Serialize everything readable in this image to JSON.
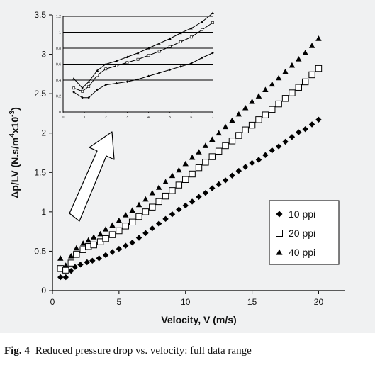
{
  "caption": {
    "label": "Fig. 4",
    "text": "Reduced pressure drop vs. velocity: full data range"
  },
  "chart_data": [
    {
      "type": "scatter",
      "title": "",
      "xlabel": "Velocity, V (m/s)",
      "ylabel_parts": {
        "main": "Δp/LV (N.s/m",
        "sup1": "4",
        "mid": "x10",
        "sup2": "-3",
        "end": ")"
      },
      "xlim": [
        0,
        22
      ],
      "ylim": [
        0,
        3.5
      ],
      "xticks": [
        0,
        5,
        10,
        15,
        20
      ],
      "xtick_labels": [
        "0",
        "5",
        "10",
        "15",
        "20"
      ],
      "yticks": [
        0,
        0.5,
        1,
        1.5,
        2,
        2.5,
        3,
        3.5
      ],
      "ytick_labels": [
        "0",
        "0.5",
        "1",
        "1.5",
        "2",
        "2.5",
        "3",
        "3.5"
      ],
      "grid": false,
      "legend_position": "bottom-right",
      "series": [
        {
          "name": "10 ppi",
          "marker": "diamond",
          "color": "#000000",
          "points": [
            [
              0.6,
              0.17
            ],
            [
              1.0,
              0.17
            ],
            [
              1.4,
              0.25
            ],
            [
              1.7,
              0.3
            ],
            [
              2.1,
              0.33
            ],
            [
              2.6,
              0.36
            ],
            [
              3.0,
              0.38
            ],
            [
              3.5,
              0.41
            ],
            [
              4.0,
              0.45
            ],
            [
              4.5,
              0.49
            ],
            [
              5.0,
              0.53
            ],
            [
              5.5,
              0.57
            ],
            [
              6.0,
              0.61
            ],
            [
              6.5,
              0.67
            ],
            [
              7.0,
              0.73
            ],
            [
              7.5,
              0.79
            ],
            [
              8.0,
              0.85
            ],
            [
              8.5,
              0.91
            ],
            [
              9.0,
              0.97
            ],
            [
              9.5,
              1.03
            ],
            [
              10.0,
              1.08
            ],
            [
              10.5,
              1.13
            ],
            [
              11.0,
              1.19
            ],
            [
              11.5,
              1.24
            ],
            [
              12.0,
              1.3
            ],
            [
              12.5,
              1.35
            ],
            [
              13.0,
              1.4
            ],
            [
              13.5,
              1.46
            ],
            [
              14.0,
              1.52
            ],
            [
              14.5,
              1.57
            ],
            [
              15.0,
              1.62
            ],
            [
              15.5,
              1.66
            ],
            [
              16.0,
              1.72
            ],
            [
              16.5,
              1.78
            ],
            [
              17.0,
              1.83
            ],
            [
              17.5,
              1.89
            ],
            [
              18.0,
              1.95
            ],
            [
              18.5,
              2.01
            ],
            [
              19.0,
              2.05
            ],
            [
              19.5,
              2.11
            ],
            [
              20.0,
              2.17
            ]
          ]
        },
        {
          "name": "20 ppi",
          "marker": "square-open",
          "color": "#000000",
          "points": [
            [
              0.6,
              0.28
            ],
            [
              1.0,
              0.26
            ],
            [
              1.4,
              0.35
            ],
            [
              1.8,
              0.46
            ],
            [
              2.3,
              0.52
            ],
            [
              2.7,
              0.56
            ],
            [
              3.1,
              0.58
            ],
            [
              3.6,
              0.62
            ],
            [
              4.0,
              0.66
            ],
            [
              4.5,
              0.71
            ],
            [
              5.0,
              0.76
            ],
            [
              5.5,
              0.82
            ],
            [
              6.0,
              0.87
            ],
            [
              6.5,
              0.94
            ],
            [
              7.0,
              1.0
            ],
            [
              7.5,
              1.06
            ],
            [
              8.0,
              1.13
            ],
            [
              8.5,
              1.2
            ],
            [
              9.0,
              1.27
            ],
            [
              9.5,
              1.34
            ],
            [
              10.0,
              1.41
            ],
            [
              10.5,
              1.48
            ],
            [
              11.0,
              1.56
            ],
            [
              11.5,
              1.63
            ],
            [
              12.0,
              1.7
            ],
            [
              12.5,
              1.77
            ],
            [
              13.0,
              1.84
            ],
            [
              13.5,
              1.9
            ],
            [
              14.0,
              1.97
            ],
            [
              14.5,
              2.04
            ],
            [
              15.0,
              2.1
            ],
            [
              15.5,
              2.17
            ],
            [
              16.0,
              2.23
            ],
            [
              16.5,
              2.3
            ],
            [
              17.0,
              2.37
            ],
            [
              17.5,
              2.44
            ],
            [
              18.0,
              2.51
            ],
            [
              18.5,
              2.58
            ],
            [
              19.0,
              2.65
            ],
            [
              19.5,
              2.74
            ],
            [
              20.0,
              2.82
            ]
          ]
        },
        {
          "name": "40 ppi",
          "marker": "triangle",
          "color": "#000000",
          "points": [
            [
              0.6,
              0.41
            ],
            [
              1.0,
              0.32
            ],
            [
              1.4,
              0.44
            ],
            [
              1.8,
              0.54
            ],
            [
              2.3,
              0.6
            ],
            [
              2.7,
              0.64
            ],
            [
              3.1,
              0.68
            ],
            [
              3.6,
              0.72
            ],
            [
              4.0,
              0.78
            ],
            [
              4.5,
              0.83
            ],
            [
              5.0,
              0.89
            ],
            [
              5.5,
              0.96
            ],
            [
              6.0,
              1.02
            ],
            [
              6.5,
              1.09
            ],
            [
              7.0,
              1.16
            ],
            [
              7.5,
              1.24
            ],
            [
              8.0,
              1.31
            ],
            [
              8.5,
              1.38
            ],
            [
              9.0,
              1.46
            ],
            [
              9.5,
              1.53
            ],
            [
              10.0,
              1.61
            ],
            [
              10.5,
              1.69
            ],
            [
              11.0,
              1.76
            ],
            [
              11.5,
              1.84
            ],
            [
              12.0,
              1.92
            ],
            [
              12.5,
              2.0
            ],
            [
              13.0,
              2.08
            ],
            [
              13.5,
              2.16
            ],
            [
              14.0,
              2.24
            ],
            [
              14.5,
              2.32
            ],
            [
              15.0,
              2.4
            ],
            [
              15.5,
              2.47
            ],
            [
              16.0,
              2.55
            ],
            [
              16.5,
              2.62
            ],
            [
              17.0,
              2.7
            ],
            [
              17.5,
              2.78
            ],
            [
              18.0,
              2.86
            ],
            [
              18.5,
              2.94
            ],
            [
              19.0,
              3.02
            ],
            [
              19.5,
              3.11
            ],
            [
              20.0,
              3.2
            ]
          ]
        }
      ]
    },
    {
      "type": "line",
      "title": "",
      "role": "inset",
      "xlim": [
        0,
        7
      ],
      "ylim": [
        0,
        1.2
      ],
      "xticks": [
        0,
        1,
        2,
        3,
        4,
        5,
        6,
        7
      ],
      "xtick_labels": [
        "0",
        "1",
        "2",
        "3",
        "4",
        "5",
        "6",
        "7"
      ],
      "yticks": [
        0,
        0.2,
        0.4,
        0.6,
        0.8,
        1,
        1.2
      ],
      "ytick_labels": [
        "0",
        "0.2",
        "0.4",
        "0.6",
        "0.8",
        "1",
        "1.2"
      ],
      "grid": true,
      "series": [
        {
          "name": "",
          "marker": "diamond-small",
          "x": [
            0.5,
            0.9,
            1.2,
            1.6,
            2.0,
            2.5,
            3.0,
            3.5,
            4.0,
            4.5,
            5.0,
            5.5,
            6.0,
            6.5,
            7.0
          ],
          "y": [
            0.25,
            0.18,
            0.18,
            0.28,
            0.34,
            0.36,
            0.38,
            0.41,
            0.45,
            0.49,
            0.53,
            0.57,
            0.61,
            0.68,
            0.74
          ]
        },
        {
          "name": "",
          "marker": "square-small",
          "x": [
            0.5,
            0.9,
            1.2,
            1.6,
            2.0,
            2.5,
            3.0,
            3.5,
            4.0,
            4.5,
            5.0,
            5.5,
            6.0,
            6.5,
            7.0
          ],
          "y": [
            0.3,
            0.26,
            0.32,
            0.46,
            0.54,
            0.58,
            0.62,
            0.66,
            0.71,
            0.76,
            0.82,
            0.88,
            0.94,
            1.03,
            1.12
          ]
        },
        {
          "name": "",
          "marker": "triangle-small",
          "x": [
            0.5,
            0.9,
            1.2,
            1.6,
            2.0,
            2.5,
            3.0,
            3.5,
            4.0,
            4.5,
            5.0,
            5.5,
            6.0,
            6.5,
            7.0
          ],
          "y": [
            0.42,
            0.3,
            0.38,
            0.52,
            0.6,
            0.64,
            0.69,
            0.74,
            0.8,
            0.86,
            0.92,
            0.99,
            1.05,
            1.13,
            1.24
          ]
        }
      ]
    }
  ]
}
